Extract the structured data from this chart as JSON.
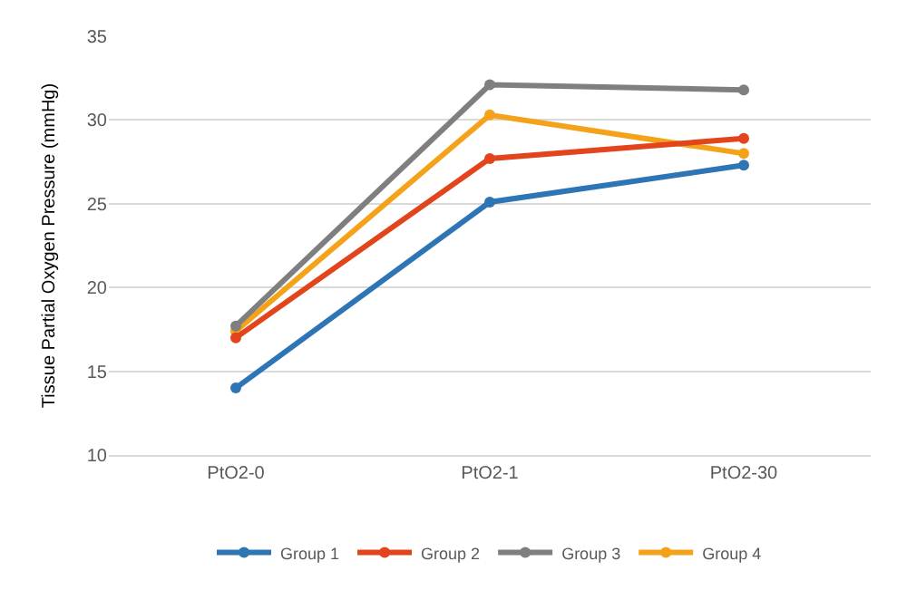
{
  "chart_data": {
    "type": "line",
    "ylabel": "Tissue Partial Oxygen Pressure (mmHg)",
    "categories": [
      "PtO2-0",
      "PtO2-1",
      "PtO2-30"
    ],
    "series": [
      {
        "name": "Group 1",
        "color": "#2e75b6",
        "values": [
          14.0,
          25.1,
          27.3
        ]
      },
      {
        "name": "Group 2",
        "color": "#e2441c",
        "values": [
          17.0,
          27.7,
          28.9
        ]
      },
      {
        "name": "Group 3",
        "color": "#7f7f7f",
        "values": [
          17.7,
          32.1,
          31.8
        ]
      },
      {
        "name": "Group 4",
        "color": "#f5a21b",
        "values": [
          17.4,
          30.3,
          28.0
        ]
      }
    ],
    "ylim": [
      10,
      35
    ],
    "yticks": [
      10,
      15,
      20,
      25,
      30,
      35
    ],
    "grid": "y",
    "legend": "bottom",
    "marker": "circle",
    "line_style": "solid"
  }
}
